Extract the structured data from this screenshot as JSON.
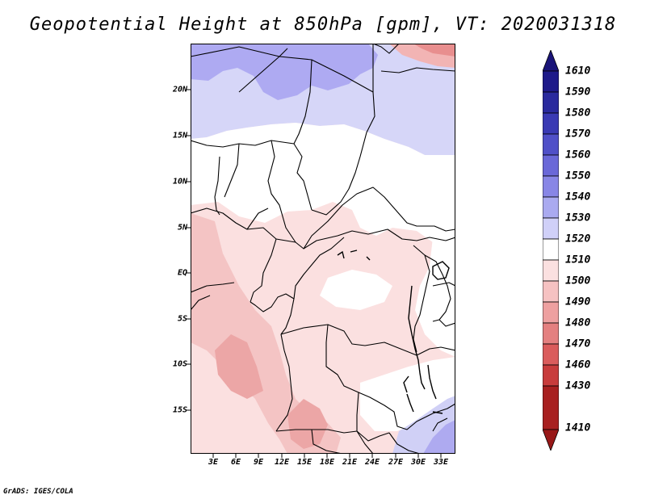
{
  "title": "Geopotential Height at 850hPa [gpm], VT: 2020031318",
  "credit": "GrADS: IGES/COLA",
  "map": {
    "variable": "Geopotential Height at 850hPa",
    "units": "gpm",
    "valid_time": "2020031318",
    "lat_labels": [
      "20N",
      "15N",
      "10N",
      "5N",
      "EQ",
      "5S",
      "10S",
      "15S"
    ],
    "lon_labels": [
      "3E",
      "6E",
      "9E",
      "12E",
      "15E",
      "18E",
      "21E",
      "24E",
      "27E",
      "30E",
      "33E"
    ]
  },
  "colorbar": {
    "labels": [
      "1610",
      "1590",
      "1580",
      "1570",
      "1560",
      "1550",
      "1540",
      "1530",
      "1520",
      "1510",
      "1500",
      "1490",
      "1480",
      "1470",
      "1460",
      "1430",
      "1410"
    ],
    "colors": {
      "c1590": "#1e1a8a",
      "c1580": "#2a2a9e",
      "c1570": "#3a3ab4",
      "c1560": "#5050c8",
      "c1550": "#6a68d8",
      "c1540": "#8886e6",
      "c1530": "#aaaaf0",
      "c1520": "#d0d0f8",
      "c1510": "#ffffff",
      "c1500": "#fbe0e0",
      "c1490": "#f6c2c2",
      "c1480": "#eea0a0",
      "c1470": "#e48080",
      "c1460": "#da5c5c",
      "c1430": "#c83c3c",
      "c1410": "#a82020"
    }
  }
}
